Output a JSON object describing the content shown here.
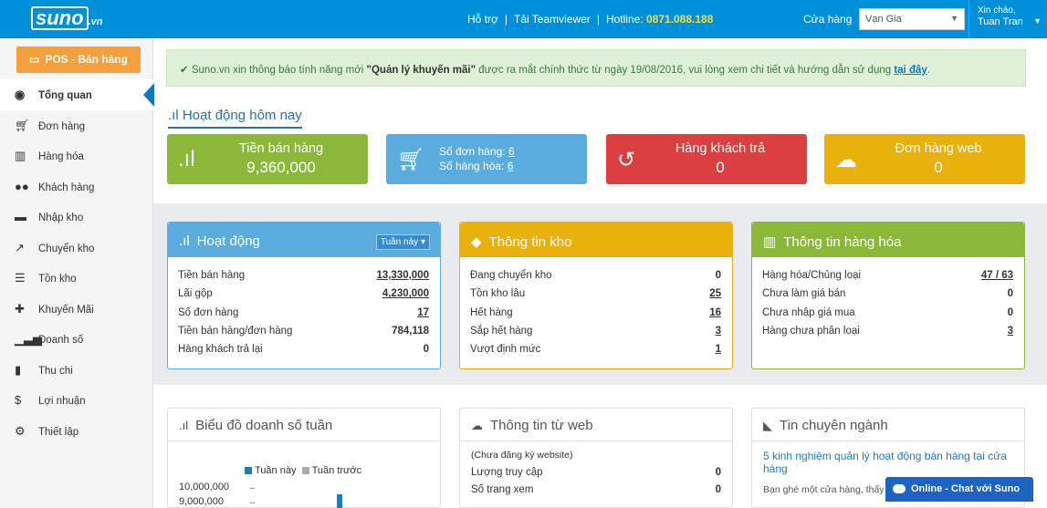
{
  "header": {
    "logo": "suno",
    "logo_suffix": ".vn",
    "links": [
      "Hỗ trợ",
      "Tải Teamviewer"
    ],
    "hotline_label": "Hotline:",
    "hotline": "0871.088.188",
    "store_label": "Cửa hàng",
    "store_value": "Vạn Gia",
    "greeting": "Xin chào,",
    "user": "Tuan Tran"
  },
  "sidebar": {
    "pos_label": "POS - Bán hàng",
    "items": [
      {
        "label": "Tổng quan",
        "icon": "dashboard-icon"
      },
      {
        "label": "Đơn hàng",
        "icon": "cart-icon"
      },
      {
        "label": "Hàng hóa",
        "icon": "barcode-icon"
      },
      {
        "label": "Khách hàng",
        "icon": "users-icon"
      },
      {
        "label": "Nhập kho",
        "icon": "truck-icon"
      },
      {
        "label": "Chuyển kho",
        "icon": "share-icon"
      },
      {
        "label": "Tồn kho",
        "icon": "list-icon"
      },
      {
        "label": "Khuyến Mãi",
        "icon": "gift-icon"
      },
      {
        "label": "Doanh số",
        "icon": "signal-icon"
      },
      {
        "label": "Thu chi",
        "icon": "file-icon"
      },
      {
        "label": "Lợi nhuận",
        "icon": "dollar-icon"
      },
      {
        "label": "Thiết lập",
        "icon": "cogs-icon"
      }
    ]
  },
  "notice": {
    "text_before": "Suno.vn xin thông báo tính năng mới ",
    "quoted": "\"Quản lý khuyến mãi\"",
    "text_after": " được ra mắt chính thức từ ngày 19/08/2016, vui lòng xem chi tiết và hướng dẫn sử dụng ",
    "link": "tại đây",
    "end": "."
  },
  "today": {
    "title": "Hoạt động hôm nay",
    "sales_label": "Tiền bán hàng",
    "sales_value": "9,360,000",
    "orders_label": "Số đơn hàng:",
    "orders_value": "6",
    "items_label": "Số hàng hóa:",
    "items_value": "6",
    "returns_label": "Hàng khách trả",
    "returns_value": "0",
    "web_label": "Đơn hàng web",
    "web_value": "0"
  },
  "activity": {
    "title": "Hoạt động",
    "period": "Tuần này",
    "rows": [
      {
        "label": "Tiền bán hàng",
        "value": "13,330,000"
      },
      {
        "label": "Lãi gộp",
        "value": "4,230,000"
      },
      {
        "label": "Số đơn hàng",
        "value": "17"
      },
      {
        "label": "Tiền bán hàng/đơn hàng",
        "value": "784,118"
      },
      {
        "label": "Hàng khách trả lại",
        "value": "0"
      }
    ]
  },
  "stock": {
    "title": "Thông tin kho",
    "rows": [
      {
        "label": "Đang chuyển kho",
        "value": "0"
      },
      {
        "label": "Tồn kho lâu",
        "value": "25"
      },
      {
        "label": "Hết hàng",
        "value": "16"
      },
      {
        "label": "Sắp hết hàng",
        "value": "3"
      },
      {
        "label": "Vượt định mức",
        "value": "1"
      }
    ]
  },
  "goods": {
    "title": "Thông tin hàng hóa",
    "rows": [
      {
        "label": "Hàng hóa/Chủng loại",
        "value": "47 / 63"
      },
      {
        "label": "Chưa làm giá bán",
        "value": "0"
      },
      {
        "label": "Chưa nhập giá mua",
        "value": "0"
      },
      {
        "label": "Hàng chưa phân loại",
        "value": "3"
      }
    ]
  },
  "chart_panel": {
    "title": "Biểu đồ doanh số tuần"
  },
  "chart_data": {
    "type": "bar",
    "title": "",
    "series": [
      {
        "name": "Tuần này",
        "color": "#1f7ac6"
      },
      {
        "name": "Tuần trước",
        "color": "#aaaaaa"
      }
    ],
    "y_ticks": [
      "10,000,000",
      "9,000,000"
    ]
  },
  "web_info": {
    "title": "Thông tin từ web",
    "note": "(Chưa đăng ký website)",
    "rows": [
      {
        "label": "Lượng truy cập",
        "value": "0"
      },
      {
        "label": "Số trang xem",
        "value": "0"
      }
    ]
  },
  "news": {
    "title": "Tin chuyên ngành",
    "headline": "5 kinh nghiệm quản lý hoạt động bán hàng tại cửa hàng",
    "excerpt": "Bạn ghé một cửa hàng, thấy"
  },
  "chat": {
    "label": "Online - Chat với Suno"
  },
  "colors": {
    "topbar": "#0090d9",
    "green": "#8cb83a",
    "blue": "#5aacdf",
    "red": "#dc3f3f",
    "yellow": "#e8b10b"
  }
}
